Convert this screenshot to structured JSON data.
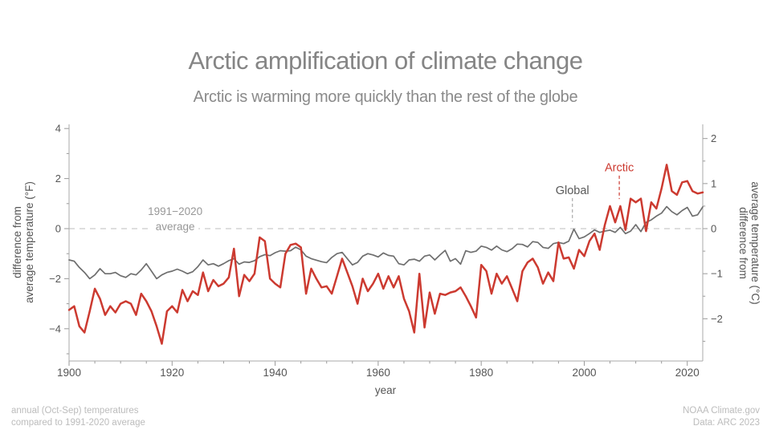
{
  "header": {
    "title": "Arctic amplification of climate change",
    "subtitle": "Arctic is warming more quickly than the rest of the globe"
  },
  "footer": {
    "note_line1": "annual (Oct-Sep) temperatures",
    "note_line2": "compared to 1991-2020 average",
    "credit_line1": "NOAA Climate.gov",
    "credit_line2": "Data: ARC 2023"
  },
  "colors": {
    "arctic": "#cc3a30",
    "global": "#6e6e6e",
    "spine": "#a8a8a8",
    "tick": "#999999",
    "tick_label": "#555555",
    "zero_dash": "#cbcbcb",
    "baseline_text": "#979797",
    "global_label": "#595959"
  },
  "chart_data": {
    "type": "line",
    "title": "Arctic amplification of climate change",
    "subtitle": "Arctic is warming more quickly than the rest of the globe",
    "xlabel": "year",
    "years": {
      "start": 1900,
      "end": 2023,
      "step": 1
    },
    "x_axis": {
      "ticks": [
        1900,
        1920,
        1940,
        1960,
        1980,
        2000,
        2020
      ],
      "minor_step": 5
    },
    "y_left": {
      "label_lines": [
        "difference from",
        "average temperature (°F)"
      ],
      "ticks": [
        4,
        2,
        0,
        -2,
        -4
      ],
      "tick_labels": [
        "4",
        "2",
        "0",
        "−2",
        "−4"
      ],
      "minor_step": 1,
      "range": [
        -5.3,
        4.15
      ]
    },
    "y_right": {
      "label_lines": [
        "difference from",
        "average temperature (°C)"
      ],
      "ticks": [
        2,
        1,
        0,
        -1,
        -2
      ],
      "tick_labels": [
        "2",
        "1",
        "0",
        "−1",
        "−2"
      ],
      "minor_step": 0.5
    },
    "baseline_annotation": {
      "text_line1": "1991−2020",
      "text_line2": "average",
      "year": 1920.6,
      "value_line1": 0.68,
      "value_line2": 0.07,
      "baseline_value": 0
    },
    "annotations": [
      {
        "text": "Global",
        "year": 1997.7,
        "label_value": 1.5,
        "leader_from": 1.22,
        "leader_to": 0.28,
        "color": "#595959",
        "leader_color": "#a9a9a9"
      },
      {
        "text": "Arctic",
        "year": 2006.8,
        "label_value": 2.42,
        "leader_from": 2.12,
        "leader_to": 1.18,
        "color": "#cc3a30",
        "leader_color": "#cc3a30"
      }
    ],
    "series": [
      {
        "name": "Global",
        "color": "#6e6e6e",
        "stroke_width": 1.7,
        "units": "°F",
        "values": [
          -1.25,
          -1.3,
          -1.55,
          -1.75,
          -2.0,
          -1.85,
          -1.6,
          -1.8,
          -1.8,
          -1.75,
          -1.88,
          -1.95,
          -1.8,
          -1.85,
          -1.65,
          -1.4,
          -1.7,
          -2.0,
          -1.85,
          -1.75,
          -1.7,
          -1.62,
          -1.7,
          -1.8,
          -1.72,
          -1.52,
          -1.25,
          -1.45,
          -1.4,
          -1.5,
          -1.4,
          -1.28,
          -1.2,
          -1.42,
          -1.33,
          -1.35,
          -1.28,
          -1.12,
          -1.04,
          -1.08,
          -0.96,
          -0.88,
          -0.9,
          -0.88,
          -0.74,
          -0.85,
          -1.1,
          -1.2,
          -1.26,
          -1.32,
          -1.36,
          -1.15,
          -1.0,
          -0.95,
          -1.2,
          -1.45,
          -1.35,
          -1.1,
          -1.0,
          -1.05,
          -1.13,
          -0.97,
          -1.07,
          -1.1,
          -1.4,
          -1.45,
          -1.25,
          -1.22,
          -1.3,
          -1.1,
          -1.05,
          -1.25,
          -1.05,
          -0.87,
          -1.3,
          -1.2,
          -1.42,
          -0.88,
          -0.95,
          -0.9,
          -0.7,
          -0.75,
          -0.86,
          -0.7,
          -0.85,
          -0.92,
          -0.8,
          -0.62,
          -0.63,
          -0.73,
          -0.52,
          -0.55,
          -0.75,
          -0.79,
          -0.6,
          -0.55,
          -0.6,
          -0.5,
          -0.02,
          -0.4,
          -0.33,
          -0.2,
          -0.05,
          -0.15,
          -0.1,
          -0.06,
          -0.15,
          0.05,
          -0.2,
          -0.1,
          0.16,
          -0.12,
          0.25,
          0.35,
          0.5,
          0.62,
          0.88,
          0.68,
          0.55,
          0.72,
          0.85,
          0.5,
          0.55,
          0.87
        ]
      },
      {
        "name": "Arctic",
        "color": "#cc3a30",
        "stroke_width": 2.5,
        "units": "°F",
        "values": [
          -3.25,
          -3.1,
          -3.9,
          -4.15,
          -3.3,
          -2.4,
          -2.8,
          -3.45,
          -3.1,
          -3.35,
          -3.0,
          -2.9,
          -3.0,
          -3.45,
          -2.6,
          -2.9,
          -3.3,
          -3.9,
          -4.6,
          -3.3,
          -3.1,
          -3.35,
          -2.45,
          -2.9,
          -2.5,
          -2.65,
          -1.75,
          -2.5,
          -2.05,
          -2.3,
          -2.2,
          -1.95,
          -0.8,
          -2.7,
          -1.85,
          -2.1,
          -1.8,
          -0.35,
          -0.5,
          -2.0,
          -2.2,
          -2.35,
          -1.0,
          -0.65,
          -0.6,
          -0.75,
          -2.6,
          -1.6,
          -2.0,
          -2.35,
          -2.3,
          -2.6,
          -1.9,
          -1.2,
          -1.75,
          -2.3,
          -3.0,
          -2.0,
          -2.5,
          -2.2,
          -1.8,
          -2.4,
          -1.9,
          -2.35,
          -1.9,
          -2.8,
          -3.3,
          -4.15,
          -1.8,
          -3.95,
          -2.55,
          -3.4,
          -2.6,
          -2.65,
          -2.55,
          -2.5,
          -2.35,
          -2.7,
          -3.1,
          -3.55,
          -1.45,
          -1.7,
          -2.6,
          -1.8,
          -2.2,
          -1.9,
          -2.4,
          -2.9,
          -1.7,
          -1.35,
          -1.2,
          -1.55,
          -2.2,
          -1.75,
          -2.1,
          -0.55,
          -1.2,
          -1.15,
          -1.6,
          -0.85,
          -1.1,
          -0.5,
          -0.2,
          -0.85,
          0.15,
          0.9,
          0.25,
          0.9,
          -0.05,
          1.2,
          1.05,
          1.2,
          -0.1,
          1.05,
          0.8,
          1.6,
          2.55,
          1.5,
          1.35,
          1.85,
          1.9,
          1.5,
          1.4,
          1.45
        ]
      }
    ]
  }
}
